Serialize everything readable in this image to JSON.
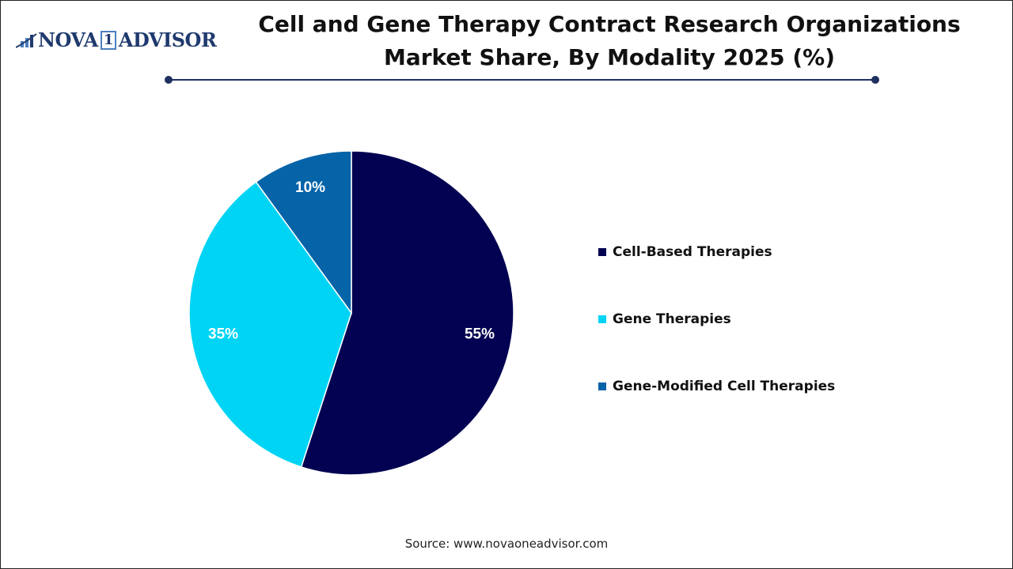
{
  "logo": {
    "text_left": "NOVA",
    "text_one": "1",
    "text_right": "ADVISOR"
  },
  "chart_data": {
    "type": "pie",
    "title": "Cell and Gene Therapy Contract Research Organizations Market Share, By Modality 2025 (%)",
    "categories": [
      "Cell-Based Therapies",
      "Gene Therapies",
      "Gene-Modified Cell Therapies"
    ],
    "values": [
      55,
      35,
      10
    ],
    "labels": [
      "55%",
      "35%",
      "10%"
    ],
    "colors": [
      "#020152",
      "#00d4f5",
      "#0563a8"
    ],
    "legend_position": "right",
    "start_angle": "top, clockwise"
  },
  "source": "Source: www.novaoneadvisor.com"
}
